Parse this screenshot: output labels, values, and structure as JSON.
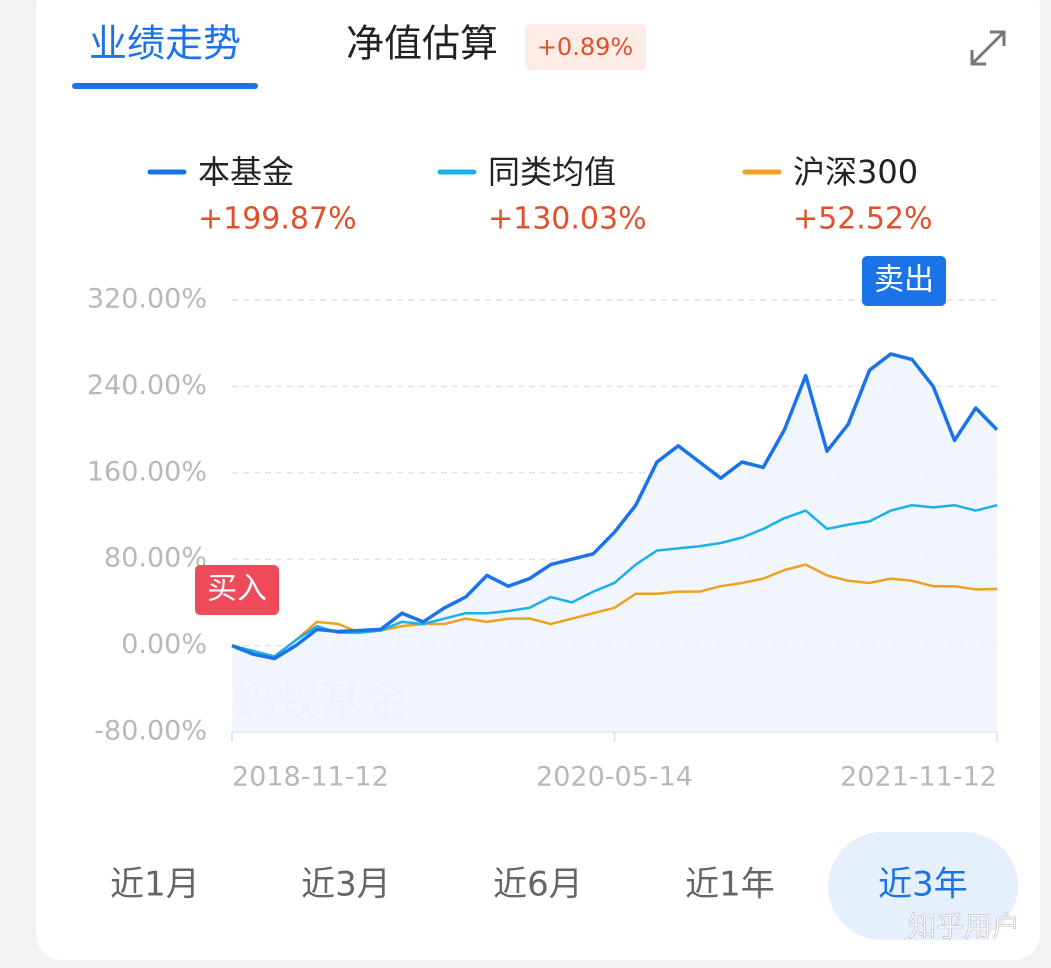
{
  "tabs": [
    "业绩走势",
    "净值估算"
  ],
  "estimate_change": "+0.89%",
  "chart_data": {
    "type": "line",
    "categories": [
      "2018-11-12",
      null,
      null,
      null,
      null,
      null,
      null,
      null,
      null,
      null,
      null,
      null,
      null,
      null,
      null,
      null,
      null,
      null,
      "2020-05-14",
      null,
      null,
      null,
      null,
      null,
      null,
      null,
      null,
      null,
      null,
      null,
      null,
      null,
      null,
      null,
      null,
      null,
      "2021-11-12"
    ],
    "series": [
      {
        "name": "本基金",
        "color": "#1a73e8",
        "change_label": "+199.87%",
        "values": [
          0,
          -8,
          -12,
          0,
          15,
          13,
          14,
          15,
          30,
          22,
          35,
          45,
          65,
          55,
          62,
          75,
          80,
          85,
          105,
          130,
          170,
          185,
          170,
          155,
          170,
          165,
          200,
          250,
          180,
          205,
          255,
          270,
          265,
          240,
          190,
          220,
          199.87
        ]
      },
      {
        "name": "同类均值",
        "color": "#1ab0e8",
        "change_label": "+130.03%",
        "values": [
          0,
          -5,
          -10,
          5,
          18,
          12,
          12,
          14,
          22,
          20,
          25,
          30,
          30,
          32,
          35,
          45,
          40,
          50,
          58,
          75,
          88,
          90,
          92,
          95,
          100,
          108,
          118,
          125,
          108,
          112,
          115,
          125,
          130,
          128,
          130,
          125,
          130.03
        ]
      },
      {
        "name": "沪深300",
        "color": "#f0a020",
        "change_label": "+52.52%",
        "values": [
          0,
          -5,
          -10,
          5,
          22,
          20,
          12,
          14,
          18,
          20,
          20,
          25,
          22,
          25,
          25,
          20,
          25,
          30,
          35,
          48,
          48,
          50,
          50,
          55,
          58,
          62,
          70,
          75,
          65,
          60,
          58,
          62,
          60,
          55,
          55,
          52,
          52.52
        ]
      }
    ],
    "ylim": [
      -80,
      320
    ],
    "yticks": [
      {
        "value": -80,
        "label": "-80.00%"
      },
      {
        "value": 0,
        "label": "0.00%"
      },
      {
        "value": 80,
        "label": "80.00%"
      },
      {
        "value": 160,
        "label": "160.00%"
      },
      {
        "value": 240,
        "label": "240.00%"
      },
      {
        "value": 320,
        "label": "320.00%"
      }
    ],
    "grid": true,
    "annotations": [
      "买入",
      "卖出"
    ],
    "watermark": "蚂蚁基金"
  },
  "periods": [
    "近1月",
    "近3月",
    "近6月",
    "近1年",
    "近3年"
  ],
  "selected_period": 4,
  "credit": "知乎用户"
}
